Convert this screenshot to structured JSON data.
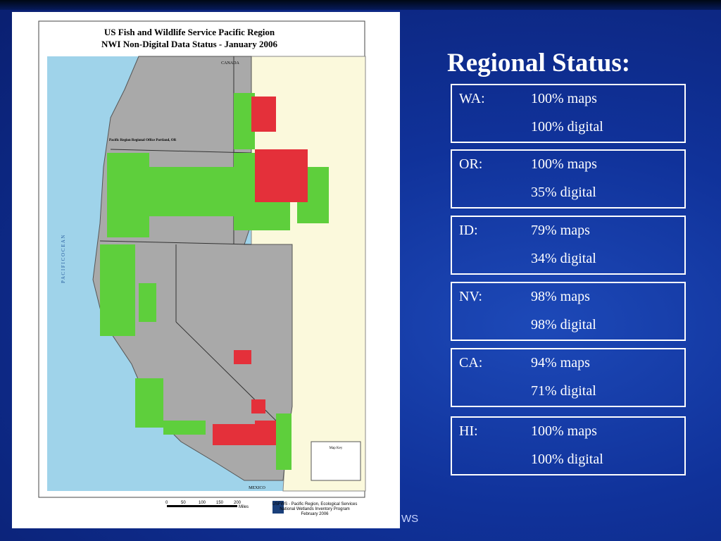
{
  "map": {
    "title_lines": [
      "US Fish and Wildlife Service Pacific Region",
      "NWI Non-Digital Data Status - January 2006"
    ],
    "labels": {
      "north": "CANADA",
      "south": "MEXICO",
      "ocean": "P A C I F I C   O C E A N",
      "office": "Pacific Region Regional Office Portland, OR"
    },
    "legend_title": "Map Key",
    "scale": [
      "0",
      "50",
      "100",
      "150",
      "200",
      "Miles"
    ],
    "credit_lines": [
      "USFWS - Pacific Region, Ecological Services",
      "National Wetlands Inventory Program",
      "February 2006"
    ]
  },
  "heading": "Regional Status:",
  "rows": [
    {
      "state": "WA:",
      "maps": "100% maps",
      "digital": "100% digital"
    },
    {
      "state": "OR:",
      "maps": "100% maps",
      "digital": "35% digital"
    },
    {
      "state": "ID:",
      "maps": "79% maps",
      "digital": "34% digital"
    },
    {
      "state": "NV:",
      "maps": "98% maps",
      "digital": "98% digital"
    },
    {
      "state": "CA:",
      "maps": "94% maps",
      "digital": "71% digital"
    },
    {
      "state": "HI:",
      "maps": "100% maps",
      "digital": "100% digital"
    }
  ],
  "footer": "WS"
}
